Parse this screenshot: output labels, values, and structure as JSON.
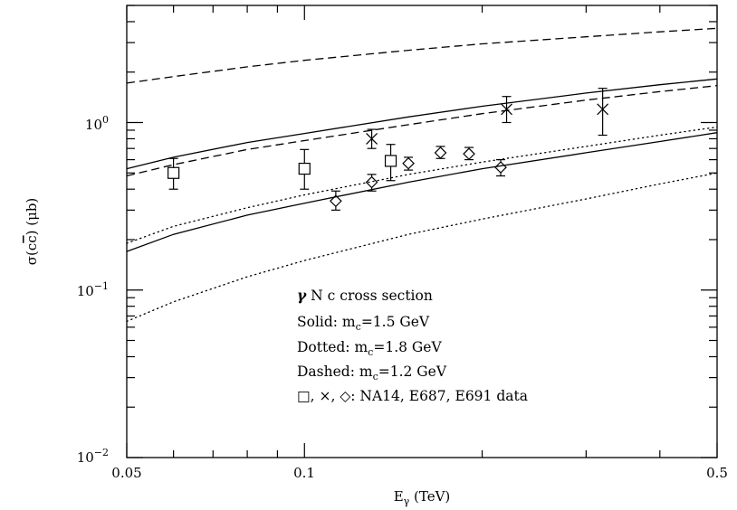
{
  "chart_data": {
    "type": "line",
    "xscale": "log",
    "yscale": "log",
    "xlim": [
      0.05,
      0.5
    ],
    "ylim": [
      0.01,
      5
    ],
    "x_ticks": [
      {
        "value": 0.05,
        "label": "0.05"
      },
      {
        "value": 0.1,
        "label": "0.1"
      },
      {
        "value": 0.5,
        "label": "0.5"
      }
    ],
    "y_ticks": [
      {
        "value": 0.01,
        "base": "10",
        "exp": "−2"
      },
      {
        "value": 0.1,
        "base": "10",
        "exp": "−1"
      },
      {
        "value": 1,
        "base": "10",
        "exp": "0"
      }
    ],
    "xlabel": {
      "main": "E",
      "sub": "γ",
      "rest": " (TeV)"
    },
    "ylabel": {
      "pre": "σ(c",
      "bar": "c",
      "post": ") (μb)"
    },
    "grid": false,
    "series": [
      {
        "style": "solid",
        "x": [
          0.05,
          0.06,
          0.08,
          0.1,
          0.15,
          0.2,
          0.3,
          0.4,
          0.5
        ],
        "y": [
          0.53,
          0.62,
          0.76,
          0.86,
          1.08,
          1.25,
          1.5,
          1.68,
          1.82
        ]
      },
      {
        "style": "solid",
        "x": [
          0.05,
          0.06,
          0.08,
          0.1,
          0.15,
          0.2,
          0.3,
          0.4,
          0.5
        ],
        "y": [
          0.17,
          0.215,
          0.28,
          0.33,
          0.44,
          0.53,
          0.66,
          0.77,
          0.87
        ]
      },
      {
        "style": "dashed",
        "x": [
          0.05,
          0.06,
          0.08,
          0.1,
          0.15,
          0.2,
          0.3,
          0.4,
          0.5
        ],
        "y": [
          1.72,
          1.88,
          2.15,
          2.35,
          2.7,
          2.95,
          3.25,
          3.48,
          3.65
        ]
      },
      {
        "style": "dashed",
        "x": [
          0.05,
          0.06,
          0.08,
          0.1,
          0.15,
          0.2,
          0.3,
          0.4,
          0.5
        ],
        "y": [
          0.48,
          0.56,
          0.69,
          0.78,
          0.97,
          1.13,
          1.36,
          1.53,
          1.66
        ]
      },
      {
        "style": "dotted",
        "x": [
          0.05,
          0.06,
          0.08,
          0.1,
          0.15,
          0.2,
          0.3,
          0.4,
          0.5
        ],
        "y": [
          0.19,
          0.24,
          0.31,
          0.37,
          0.49,
          0.58,
          0.72,
          0.84,
          0.94
        ]
      },
      {
        "style": "dotted",
        "x": [
          0.05,
          0.06,
          0.08,
          0.1,
          0.15,
          0.2,
          0.3,
          0.4,
          0.5
        ],
        "y": [
          0.065,
          0.085,
          0.12,
          0.15,
          0.215,
          0.265,
          0.35,
          0.43,
          0.5
        ]
      }
    ],
    "points": [
      {
        "marker": "square",
        "x": 0.06,
        "y": 0.5,
        "ylo": 0.4,
        "yhi": 0.61
      },
      {
        "marker": "square",
        "x": 0.1,
        "y": 0.53,
        "ylo": 0.4,
        "yhi": 0.69
      },
      {
        "marker": "square",
        "x": 0.14,
        "y": 0.59,
        "ylo": 0.45,
        "yhi": 0.74
      },
      {
        "marker": "cross",
        "x": 0.13,
        "y": 0.8,
        "ylo": 0.7,
        "yhi": 0.91
      },
      {
        "marker": "cross",
        "x": 0.22,
        "y": 1.2,
        "ylo": 1.0,
        "yhi": 1.43
      },
      {
        "marker": "cross",
        "x": 0.32,
        "y": 1.2,
        "ylo": 0.84,
        "yhi": 1.6
      },
      {
        "marker": "diamond",
        "x": 0.113,
        "y": 0.34,
        "ylo": 0.3,
        "yhi": 0.39
      },
      {
        "marker": "diamond",
        "x": 0.13,
        "y": 0.44,
        "ylo": 0.39,
        "yhi": 0.49
      },
      {
        "marker": "diamond",
        "x": 0.15,
        "y": 0.57,
        "ylo": 0.52,
        "yhi": 0.62
      },
      {
        "marker": "diamond",
        "x": 0.17,
        "y": 0.66,
        "ylo": 0.61,
        "yhi": 0.72
      },
      {
        "marker": "diamond",
        "x": 0.19,
        "y": 0.65,
        "ylo": 0.6,
        "yhi": 0.71
      },
      {
        "marker": "diamond",
        "x": 0.215,
        "y": 0.54,
        "ylo": 0.48,
        "yhi": 0.6
      }
    ],
    "annotation": {
      "line1": {
        "pre": "γ",
        "rest": " N  c cross section"
      },
      "line2": {
        "pre": "Solid: m",
        "sub": "c",
        "rest": "=1.5 GeV"
      },
      "line3": {
        "pre": "Dotted: m",
        "sub": "c",
        "rest": "=1.8 GeV"
      },
      "line4": {
        "pre": "Dashed: m",
        "sub": "c",
        "rest": "=1.2 GeV"
      },
      "line5": {
        "symbols": "□, ×, ◇",
        "rest": ": NA14, E687, E691 data"
      }
    }
  }
}
